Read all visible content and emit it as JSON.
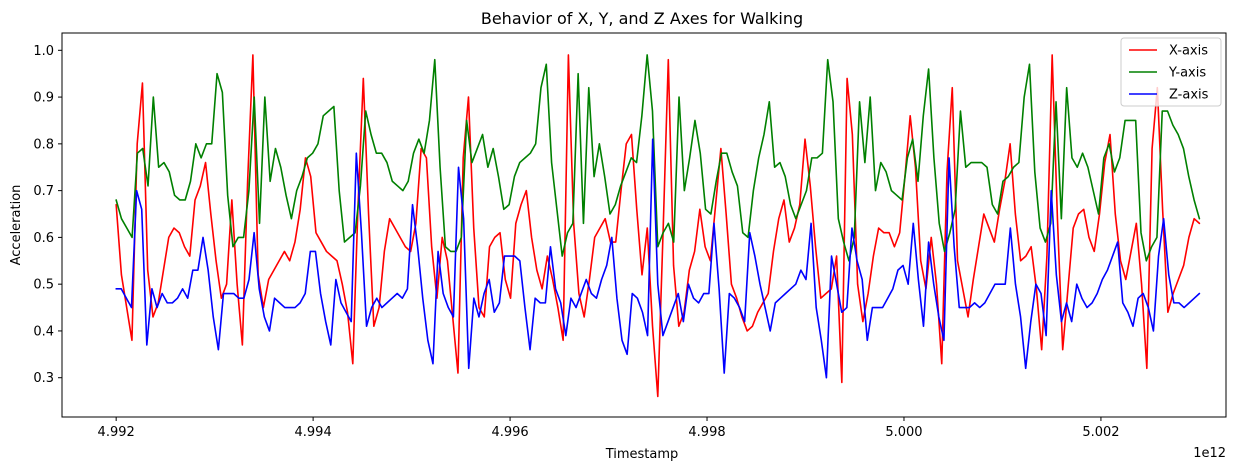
{
  "chart_data": {
    "type": "line",
    "title": "Behavior of X, Y, and Z Axes for Walking",
    "xlabel": "Timestamp",
    "ylabel": "Acceleration",
    "x_offset_label": "1e12",
    "xlim": [
      4.99145,
      5.00327
    ],
    "ylim": [
      0.216,
      1.037
    ],
    "x_ticks": [
      {
        "value": 4.992,
        "label": "4.992"
      },
      {
        "value": 4.994,
        "label": "4.994"
      },
      {
        "value": 4.996,
        "label": "4.996"
      },
      {
        "value": 4.998,
        "label": "4.998"
      },
      {
        "value": 5.0,
        "label": "5.000"
      },
      {
        "value": 5.002,
        "label": "5.002"
      }
    ],
    "y_ticks": [
      {
        "value": 0.3,
        "label": "0.3"
      },
      {
        "value": 0.4,
        "label": "0.4"
      },
      {
        "value": 0.5,
        "label": "0.5"
      },
      {
        "value": 0.6,
        "label": "0.6"
      },
      {
        "value": 0.7,
        "label": "0.7"
      },
      {
        "value": 0.8,
        "label": "0.8"
      },
      {
        "value": 0.9,
        "label": "0.9"
      },
      {
        "value": 1.0,
        "label": "1.0"
      }
    ],
    "legend_position": "top-right",
    "x_start": 4.992,
    "x_end": 5.003,
    "series": [
      {
        "name": "X-axis",
        "color": "#ff0000",
        "values": [
          0.67,
          0.52,
          0.45,
          0.38,
          0.8,
          0.93,
          0.53,
          0.43,
          0.46,
          0.53,
          0.6,
          0.62,
          0.61,
          0.58,
          0.56,
          0.68,
          0.71,
          0.76,
          0.65,
          0.55,
          0.47,
          0.5,
          0.68,
          0.5,
          0.37,
          0.72,
          0.99,
          0.52,
          0.45,
          0.51,
          0.53,
          0.55,
          0.57,
          0.55,
          0.59,
          0.66,
          0.77,
          0.73,
          0.61,
          0.59,
          0.57,
          0.56,
          0.55,
          0.5,
          0.44,
          0.33,
          0.67,
          0.94,
          0.65,
          0.41,
          0.45,
          0.57,
          0.64,
          0.62,
          0.6,
          0.58,
          0.57,
          0.63,
          0.79,
          0.77,
          0.58,
          0.47,
          0.6,
          0.55,
          0.43,
          0.31,
          0.77,
          0.9,
          0.62,
          0.45,
          0.43,
          0.58,
          0.6,
          0.61,
          0.51,
          0.47,
          0.63,
          0.67,
          0.7,
          0.6,
          0.53,
          0.49,
          0.56,
          0.51,
          0.45,
          0.38,
          0.99,
          0.63,
          0.48,
          0.43,
          0.51,
          0.6,
          0.62,
          0.64,
          0.59,
          0.59,
          0.7,
          0.8,
          0.82,
          0.66,
          0.52,
          0.62,
          0.41,
          0.26,
          0.61,
          0.98,
          0.54,
          0.41,
          0.44,
          0.53,
          0.57,
          0.66,
          0.58,
          0.55,
          0.67,
          0.79,
          0.65,
          0.5,
          0.47,
          0.43,
          0.4,
          0.41,
          0.44,
          0.46,
          0.48,
          0.57,
          0.64,
          0.68,
          0.59,
          0.62,
          0.67,
          0.81,
          0.71,
          0.58,
          0.47,
          0.48,
          0.49,
          0.56,
          0.29,
          0.94,
          0.82,
          0.5,
          0.42,
          0.48,
          0.56,
          0.62,
          0.61,
          0.61,
          0.58,
          0.61,
          0.73,
          0.86,
          0.75,
          0.55,
          0.49,
          0.6,
          0.5,
          0.33,
          0.74,
          0.92,
          0.55,
          0.49,
          0.43,
          0.51,
          0.58,
          0.65,
          0.62,
          0.59,
          0.66,
          0.72,
          0.8,
          0.65,
          0.55,
          0.56,
          0.58,
          0.49,
          0.36,
          0.56,
          0.99,
          0.64,
          0.36,
          0.49,
          0.62,
          0.65,
          0.66,
          0.6,
          0.57,
          0.65,
          0.76,
          0.82,
          0.65,
          0.55,
          0.51,
          0.57,
          0.63,
          0.5,
          0.32,
          0.79,
          0.92,
          0.66,
          0.44,
          0.48,
          0.51,
          0.54,
          0.6,
          0.64,
          0.63
        ]
      },
      {
        "name": "Y-axis",
        "color": "#008000",
        "values": [
          0.68,
          0.64,
          0.62,
          0.6,
          0.78,
          0.79,
          0.71,
          0.9,
          0.75,
          0.76,
          0.74,
          0.69,
          0.68,
          0.68,
          0.72,
          0.8,
          0.77,
          0.8,
          0.8,
          0.95,
          0.91,
          0.69,
          0.58,
          0.6,
          0.6,
          0.7,
          0.9,
          0.63,
          0.9,
          0.72,
          0.79,
          0.75,
          0.69,
          0.64,
          0.7,
          0.73,
          0.77,
          0.78,
          0.8,
          0.86,
          0.87,
          0.88,
          0.7,
          0.59,
          0.6,
          0.61,
          0.71,
          0.87,
          0.82,
          0.78,
          0.78,
          0.76,
          0.72,
          0.71,
          0.7,
          0.72,
          0.78,
          0.81,
          0.78,
          0.85,
          0.98,
          0.75,
          0.58,
          0.57,
          0.57,
          0.6,
          0.85,
          0.76,
          0.79,
          0.82,
          0.75,
          0.79,
          0.73,
          0.66,
          0.67,
          0.73,
          0.76,
          0.77,
          0.78,
          0.8,
          0.92,
          0.97,
          0.76,
          0.66,
          0.56,
          0.61,
          0.63,
          0.95,
          0.63,
          0.92,
          0.73,
          0.8,
          0.73,
          0.65,
          0.67,
          0.71,
          0.74,
          0.77,
          0.76,
          0.86,
          0.99,
          0.87,
          0.58,
          0.61,
          0.63,
          0.59,
          0.9,
          0.7,
          0.77,
          0.85,
          0.78,
          0.66,
          0.65,
          0.72,
          0.78,
          0.78,
          0.74,
          0.71,
          0.61,
          0.6,
          0.7,
          0.77,
          0.82,
          0.89,
          0.75,
          0.76,
          0.73,
          0.67,
          0.64,
          0.67,
          0.7,
          0.77,
          0.77,
          0.78,
          0.98,
          0.89,
          0.64,
          0.59,
          0.55,
          0.6,
          0.89,
          0.76,
          0.9,
          0.7,
          0.76,
          0.74,
          0.7,
          0.69,
          0.68,
          0.77,
          0.81,
          0.72,
          0.86,
          0.96,
          0.77,
          0.63,
          0.57,
          0.61,
          0.66,
          0.87,
          0.75,
          0.76,
          0.76,
          0.76,
          0.75,
          0.67,
          0.65,
          0.72,
          0.73,
          0.75,
          0.76,
          0.9,
          0.97,
          0.74,
          0.62,
          0.59,
          0.63,
          0.89,
          0.64,
          0.92,
          0.77,
          0.75,
          0.78,
          0.75,
          0.7,
          0.65,
          0.77,
          0.8,
          0.74,
          0.77,
          0.85,
          0.85,
          0.85,
          0.61,
          0.55,
          0.58,
          0.6,
          0.87,
          0.87,
          0.84,
          0.82,
          0.79,
          0.73,
          0.68,
          0.64
        ]
      },
      {
        "name": "Z-axis",
        "color": "#0000ff",
        "values": [
          0.49,
          0.49,
          0.47,
          0.45,
          0.7,
          0.66,
          0.37,
          0.49,
          0.45,
          0.48,
          0.46,
          0.46,
          0.47,
          0.49,
          0.47,
          0.53,
          0.53,
          0.6,
          0.53,
          0.43,
          0.36,
          0.48,
          0.48,
          0.48,
          0.47,
          0.47,
          0.51,
          0.61,
          0.49,
          0.43,
          0.4,
          0.47,
          0.46,
          0.45,
          0.45,
          0.45,
          0.46,
          0.48,
          0.57,
          0.57,
          0.48,
          0.42,
          0.37,
          0.51,
          0.46,
          0.44,
          0.42,
          0.78,
          0.61,
          0.41,
          0.45,
          0.47,
          0.45,
          0.46,
          0.47,
          0.48,
          0.47,
          0.49,
          0.67,
          0.58,
          0.47,
          0.38,
          0.33,
          0.57,
          0.48,
          0.45,
          0.43,
          0.75,
          0.64,
          0.32,
          0.47,
          0.43,
          0.48,
          0.51,
          0.44,
          0.46,
          0.56,
          0.56,
          0.56,
          0.55,
          0.45,
          0.36,
          0.47,
          0.46,
          0.46,
          0.58,
          0.49,
          0.46,
          0.39,
          0.47,
          0.45,
          0.48,
          0.51,
          0.48,
          0.47,
          0.51,
          0.54,
          0.6,
          0.47,
          0.38,
          0.35,
          0.48,
          0.47,
          0.44,
          0.39,
          0.81,
          0.5,
          0.39,
          0.42,
          0.45,
          0.48,
          0.42,
          0.5,
          0.47,
          0.46,
          0.48,
          0.48,
          0.63,
          0.49,
          0.31,
          0.48,
          0.47,
          0.45,
          0.42,
          0.61,
          0.56,
          0.5,
          0.45,
          0.4,
          0.46,
          0.47,
          0.48,
          0.49,
          0.5,
          0.53,
          0.51,
          0.63,
          0.45,
          0.38,
          0.3,
          0.56,
          0.5,
          0.44,
          0.45,
          0.62,
          0.55,
          0.51,
          0.38,
          0.45,
          0.45,
          0.45,
          0.47,
          0.49,
          0.53,
          0.54,
          0.5,
          0.63,
          0.51,
          0.41,
          0.59,
          0.5,
          0.43,
          0.38,
          0.77,
          0.58,
          0.45,
          0.45,
          0.45,
          0.46,
          0.45,
          0.46,
          0.48,
          0.5,
          0.5,
          0.5,
          0.62,
          0.5,
          0.43,
          0.32,
          0.42,
          0.5,
          0.48,
          0.39,
          0.7,
          0.52,
          0.42,
          0.46,
          0.42,
          0.5,
          0.47,
          0.45,
          0.46,
          0.48,
          0.51,
          0.53,
          0.56,
          0.59,
          0.46,
          0.44,
          0.41,
          0.47,
          0.48,
          0.45,
          0.4,
          0.56,
          0.64,
          0.52,
          0.46,
          0.46,
          0.45,
          0.46,
          0.47,
          0.48
        ]
      }
    ]
  }
}
